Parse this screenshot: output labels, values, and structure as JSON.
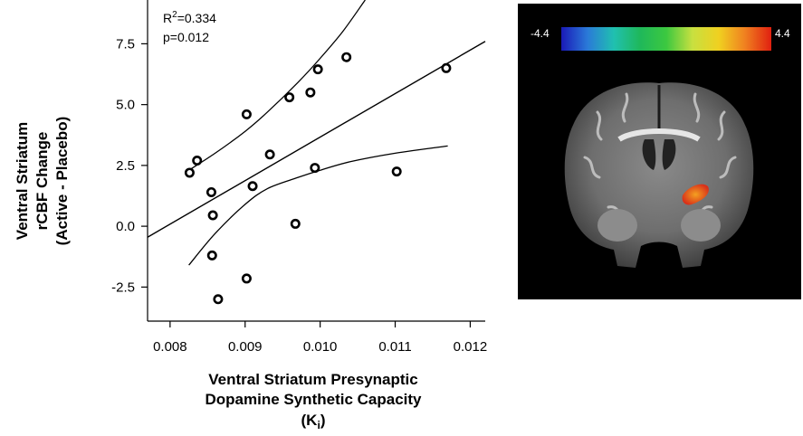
{
  "chart_data": {
    "type": "scatter",
    "xlabel_lines": [
      "Ventral Striatum Presynaptic",
      "Dopamine Synthetic Capacity"
    ],
    "xlabel_symbol": {
      "open": "(K",
      "sub": "i",
      "close": ")"
    },
    "ylabel_lines": [
      "Ventral Striatum",
      "rCBF Change",
      "(Active - Placebo)"
    ],
    "xlim": [
      0.0077,
      0.0122
    ],
    "ylim": [
      -3.9,
      9.3
    ],
    "x_ticks": [
      {
        "v": 0.008,
        "label": "0.008"
      },
      {
        "v": 0.009,
        "label": "0.009"
      },
      {
        "v": 0.01,
        "label": "0.010"
      },
      {
        "v": 0.011,
        "label": "0.011"
      },
      {
        "v": 0.012,
        "label": "0.012"
      }
    ],
    "y_ticks": [
      {
        "v": -2.5,
        "label": "-2.5"
      },
      {
        "v": 0.0,
        "label": "0.0"
      },
      {
        "v": 2.5,
        "label": "2.5"
      },
      {
        "v": 5.0,
        "label": "5.0"
      },
      {
        "v": 7.5,
        "label": "7.5"
      }
    ],
    "annotation": {
      "r_label": "R",
      "r_sup": "2",
      "r_value": "=0.334",
      "p_text": "p=0.012"
    },
    "points": [
      {
        "x": 0.00826,
        "y": 2.2
      },
      {
        "x": 0.00836,
        "y": 2.7
      },
      {
        "x": 0.00855,
        "y": 1.4
      },
      {
        "x": 0.00857,
        "y": 0.45
      },
      {
        "x": 0.00856,
        "y": -1.2
      },
      {
        "x": 0.00864,
        "y": -3.0
      },
      {
        "x": 0.00902,
        "y": 4.6
      },
      {
        "x": 0.00902,
        "y": -2.15
      },
      {
        "x": 0.0091,
        "y": 1.65
      },
      {
        "x": 0.00933,
        "y": 2.95
      },
      {
        "x": 0.00959,
        "y": 5.3
      },
      {
        "x": 0.00967,
        "y": 0.1
      },
      {
        "x": 0.00987,
        "y": 5.5
      },
      {
        "x": 0.00993,
        "y": 2.4
      },
      {
        "x": 0.00997,
        "y": 6.45
      },
      {
        "x": 0.01035,
        "y": 6.95
      },
      {
        "x": 0.01102,
        "y": 2.25
      },
      {
        "x": 0.01168,
        "y": 6.5
      }
    ],
    "fit_line": {
      "x": [
        0.0077,
        0.0122
      ],
      "y": [
        -0.45,
        7.6
      ]
    },
    "ci_upper": {
      "x": [
        0.00825,
        0.0086,
        0.009,
        0.0093,
        0.0097,
        0.01,
        0.0103,
        0.0106
      ],
      "y": [
        2.3,
        3.0,
        3.9,
        4.7,
        5.9,
        6.9,
        8.0,
        9.3
      ]
    },
    "ci_lower": {
      "x": [
        0.00825,
        0.0086,
        0.009,
        0.0093,
        0.0097,
        0.01,
        0.0104,
        0.011,
        0.0117
      ],
      "y": [
        -1.6,
        -0.3,
        0.9,
        1.55,
        2.0,
        2.3,
        2.65,
        3.0,
        3.3
      ]
    }
  },
  "brain_image": {
    "colorbar_min": "-4.4",
    "colorbar_max": "4.4",
    "colormap": [
      "#1a1ab8",
      "#2a7ad8",
      "#20c0b0",
      "#1fb85a",
      "#3cc840",
      "#c8e040",
      "#f0d020",
      "#f08020",
      "#e02010"
    ],
    "blob_color": "#e8501a"
  }
}
